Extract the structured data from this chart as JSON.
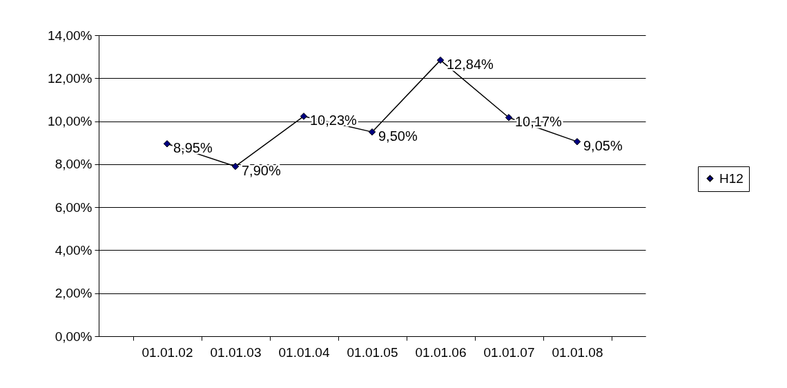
{
  "chart_data": {
    "type": "line",
    "categories": [
      "01.01.02",
      "01.01.03",
      "01.01.04",
      "01.01.05",
      "01.01.06",
      "01.01.07",
      "01.01.08"
    ],
    "series": [
      {
        "name": "H12",
        "color": "#000000",
        "values": [
          8.95,
          7.9,
          10.23,
          9.5,
          12.84,
          10.17,
          9.05
        ],
        "value_labels": [
          "8,95%",
          "7,90%",
          "10,23%",
          "9,50%",
          "12,84%",
          "10,17%",
          "9,05%"
        ]
      }
    ],
    "ylim": [
      0,
      14
    ],
    "yticks": [
      {
        "value": 0,
        "label": "0,00%"
      },
      {
        "value": 2,
        "label": "2,00%"
      },
      {
        "value": 4,
        "label": "4,00%"
      },
      {
        "value": 6,
        "label": "6,00%"
      },
      {
        "value": 8,
        "label": "8,00%"
      },
      {
        "value": 10,
        "label": "10,00%"
      },
      {
        "value": 12,
        "label": "12,00%"
      },
      {
        "value": 14,
        "label": "14,00%"
      }
    ],
    "grid": "y",
    "legend": "right",
    "marker": "diamond",
    "line_style": "solid"
  }
}
